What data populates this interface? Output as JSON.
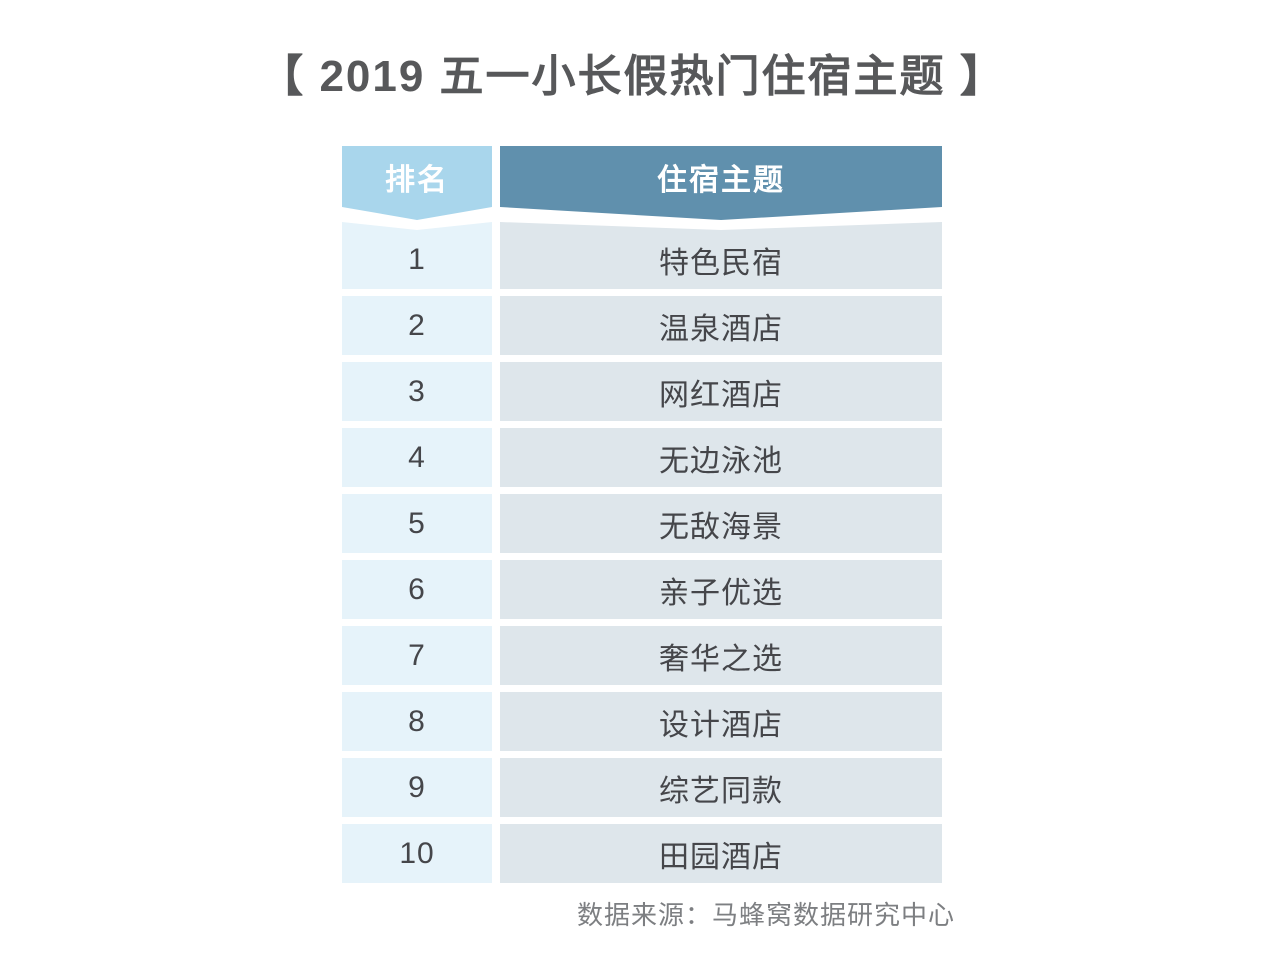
{
  "title": "【 2019 五一小长假热门住宿主题 】",
  "table": {
    "headers": [
      "排名",
      "住宿主题"
    ],
    "rows": [
      {
        "rank": "1",
        "theme": "特色民宿"
      },
      {
        "rank": "2",
        "theme": "温泉酒店"
      },
      {
        "rank": "3",
        "theme": "网红酒店"
      },
      {
        "rank": "4",
        "theme": "无边泳池"
      },
      {
        "rank": "5",
        "theme": "无敌海景"
      },
      {
        "rank": "6",
        "theme": "亲子优选"
      },
      {
        "rank": "7",
        "theme": "奢华之选"
      },
      {
        "rank": "8",
        "theme": "设计酒店"
      },
      {
        "rank": "9",
        "theme": "综艺同款"
      },
      {
        "rank": "10",
        "theme": "田园酒店"
      }
    ]
  },
  "source": "数据来源：马蜂窝数据研究中心",
  "colors": {
    "title_text": "#57585a",
    "header_text": "#ffffff",
    "rank_header_bg": "#a9d6ec",
    "theme_header_bg": "#6090ad",
    "rank_cell_bg": "#e6f3fa",
    "theme_cell_bg": "#dee6eb",
    "body_text": "#45464a",
    "source_text": "#7d7f82"
  },
  "chart_data": {
    "type": "table",
    "title": "【 2019 五一小长假热门住宿主题 】",
    "columns": [
      "排名",
      "住宿主题"
    ],
    "rows": [
      [
        1,
        "特色民宿"
      ],
      [
        2,
        "温泉酒店"
      ],
      [
        3,
        "网红酒店"
      ],
      [
        4,
        "无边泳池"
      ],
      [
        5,
        "无敌海景"
      ],
      [
        6,
        "亲子优选"
      ],
      [
        7,
        "奢华之选"
      ],
      [
        8,
        "设计酒店"
      ],
      [
        9,
        "综艺同款"
      ],
      [
        10,
        "田园酒店"
      ]
    ],
    "source": "数据来源：马蜂窝数据研究中心",
    "layout_hints": {
      "header_style": "ribbon-with-down-chevron",
      "row_striping": "none",
      "alignment": "center"
    }
  }
}
